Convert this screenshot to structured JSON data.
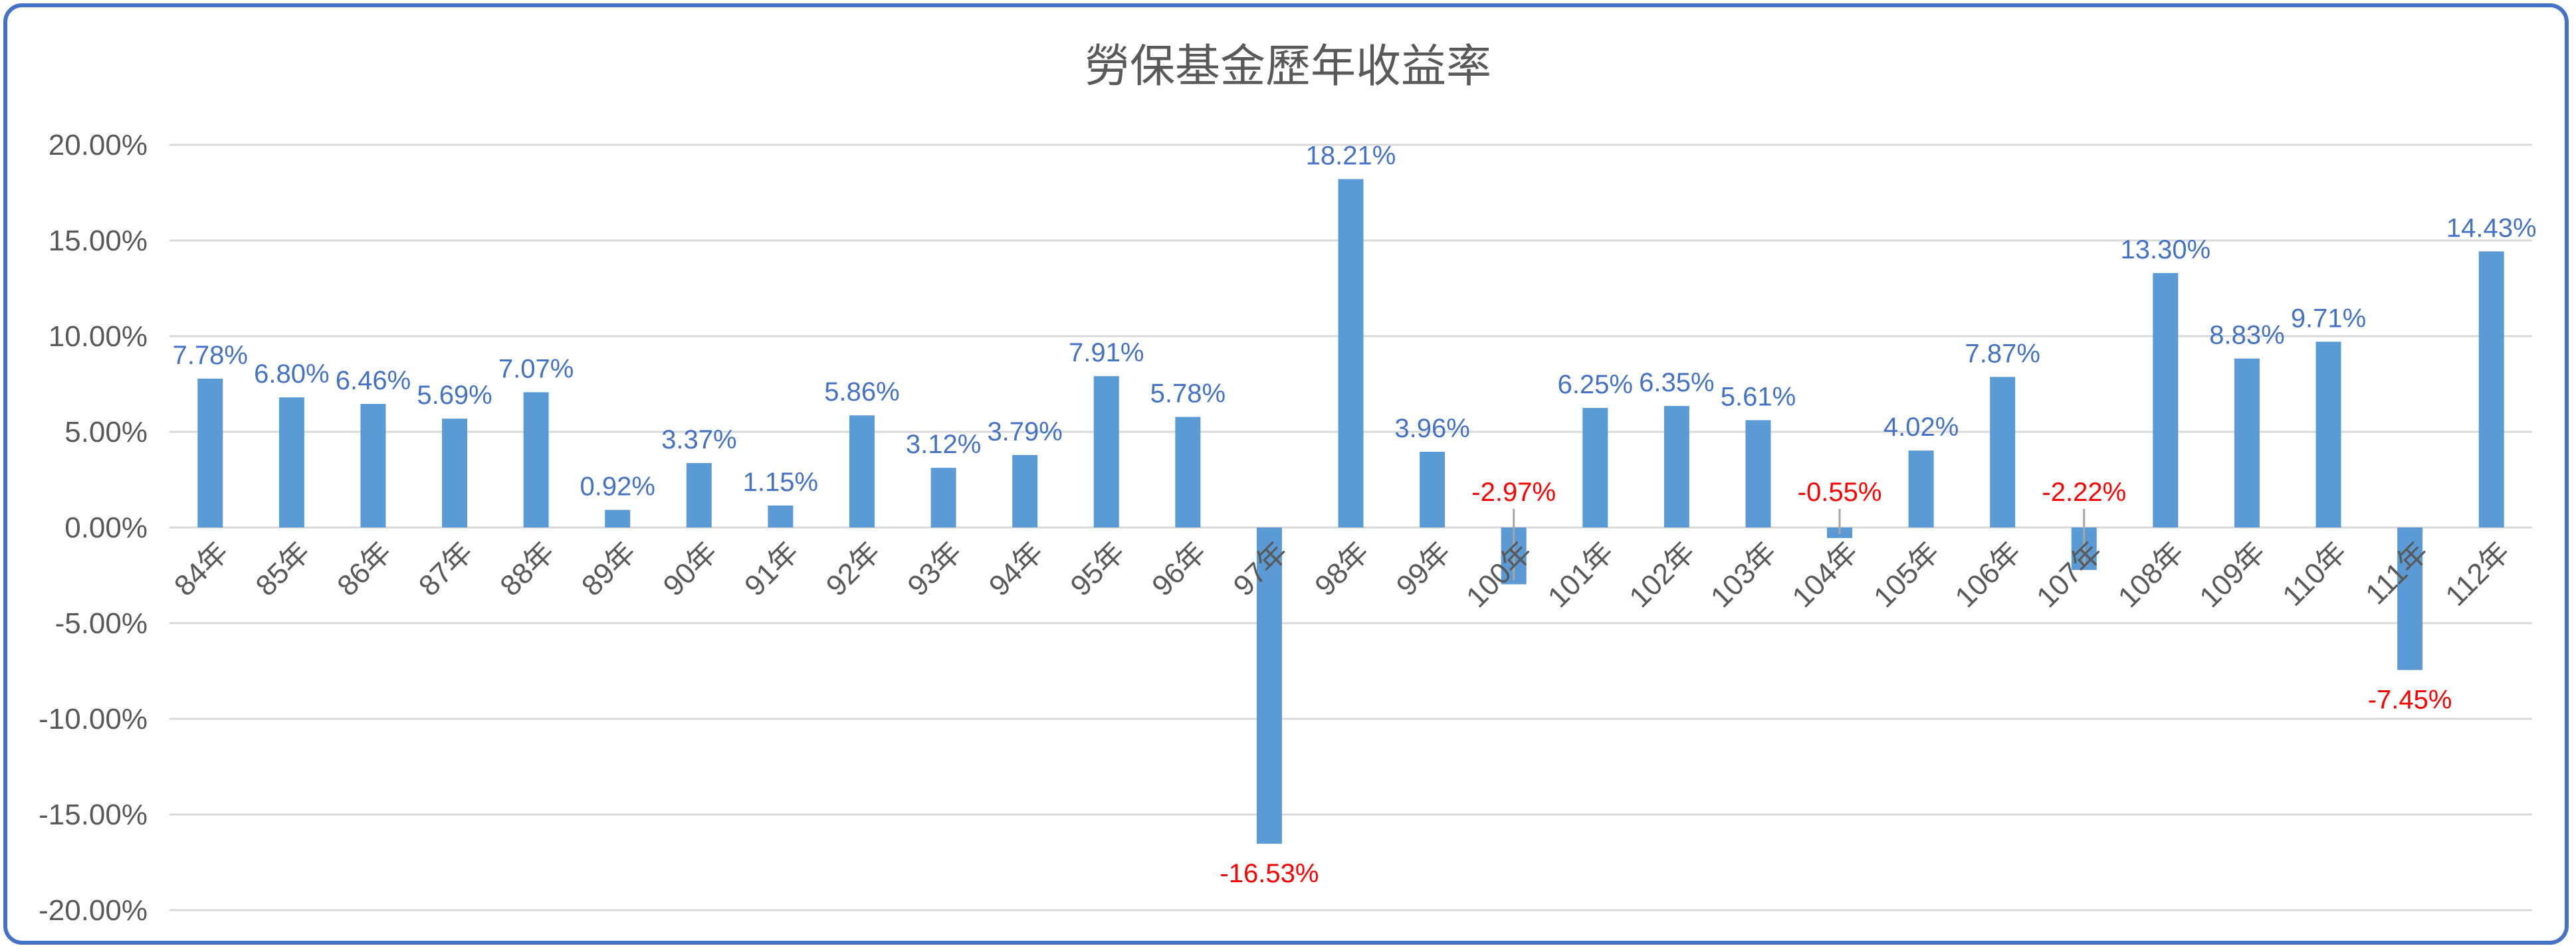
{
  "chart_data": {
    "type": "bar",
    "title": "勞保基金歷年收益率",
    "categories": [
      "84年",
      "85年",
      "86年",
      "87年",
      "88年",
      "89年",
      "90年",
      "91年",
      "92年",
      "93年",
      "94年",
      "95年",
      "96年",
      "97年",
      "98年",
      "99年",
      "100年",
      "101年",
      "102年",
      "103年",
      "104年",
      "105年",
      "106年",
      "107年",
      "108年",
      "109年",
      "110年",
      "111年",
      "112年"
    ],
    "values": [
      7.78,
      6.8,
      6.46,
      5.69,
      7.07,
      0.92,
      3.37,
      1.15,
      5.86,
      3.12,
      3.79,
      7.91,
      5.78,
      -16.53,
      18.21,
      3.96,
      -2.97,
      6.25,
      6.35,
      5.61,
      -0.55,
      4.02,
      7.87,
      -2.22,
      13.3,
      8.83,
      9.71,
      -7.45,
      14.43
    ],
    "data_labels": [
      "7.78%",
      "6.80%",
      "6.46%",
      "5.69%",
      "7.07%",
      "0.92%",
      "3.37%",
      "1.15%",
      "5.86%",
      "3.12%",
      "3.79%",
      "7.91%",
      "5.78%",
      "-16.53%",
      "18.21%",
      "3.96%",
      "-2.97%",
      "6.25%",
      "6.35%",
      "5.61%",
      "-0.55%",
      "4.02%",
      "7.87%",
      "-2.22%",
      "13.30%",
      "8.83%",
      "9.71%",
      "-7.45%",
      "14.43%"
    ],
    "ylim": [
      -20,
      20
    ],
    "yticks": [
      "20.00%",
      "15.00%",
      "10.00%",
      "5.00%",
      "0.00%",
      "-5.00%",
      "-10.00%",
      "-15.00%",
      "-20.00%"
    ],
    "grid": true,
    "legend": "none",
    "colors": {
      "bar": "#5b9bd5",
      "positive_label": "#4472c4",
      "negative_label": "#ff0000",
      "frame": "#4472c4"
    }
  }
}
